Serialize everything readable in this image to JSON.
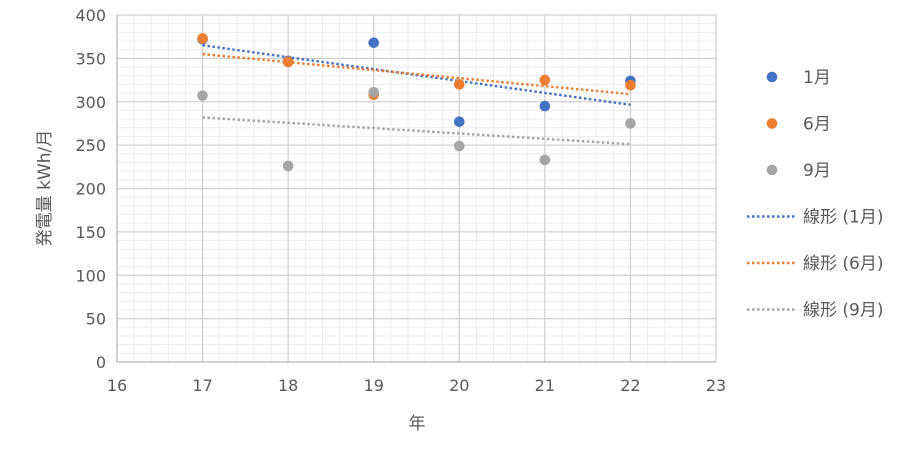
{
  "chart_data": {
    "type": "scatter",
    "xlabel": "年",
    "ylabel": "発電量 kWh/月",
    "xlim": [
      16,
      23
    ],
    "ylim": [
      0,
      400
    ],
    "x_ticks": [
      16,
      17,
      18,
      19,
      20,
      21,
      22,
      23
    ],
    "y_ticks": [
      0,
      50,
      100,
      150,
      200,
      250,
      300,
      350,
      400
    ],
    "grid": true,
    "legend_position": "right",
    "series": [
      {
        "name": "1月",
        "color": "#4472C4",
        "points": [
          [
            17,
            372
          ],
          [
            18,
            347
          ],
          [
            19,
            368
          ],
          [
            20,
            277
          ],
          [
            21,
            295
          ],
          [
            22,
            324
          ]
        ]
      },
      {
        "name": "6月",
        "color": "#ED7D31",
        "points": [
          [
            17,
            373
          ],
          [
            18,
            346
          ],
          [
            19,
            308
          ],
          [
            20,
            320
          ],
          [
            21,
            325
          ],
          [
            22,
            319
          ]
        ]
      },
      {
        "name": "9月",
        "color": "#A5A5A5",
        "points": [
          [
            17,
            307
          ],
          [
            18,
            226
          ],
          [
            19,
            311
          ],
          [
            20,
            249
          ],
          [
            21,
            233
          ],
          [
            22,
            275
          ]
        ]
      }
    ],
    "trendlines": [
      {
        "name": "線形 (1月)",
        "color": "#4472C4",
        "x": [
          17,
          22
        ],
        "y": [
          365.1,
          296.5
        ]
      },
      {
        "name": "線形 (6月)",
        "color": "#ED7D31",
        "x": [
          17,
          22
        ],
        "y": [
          354.9,
          308.8
        ]
      },
      {
        "name": "線形 (9月)",
        "color": "#A5A5A5",
        "x": [
          17,
          22
        ],
        "y": [
          281.9,
          251.1
        ]
      }
    ]
  }
}
